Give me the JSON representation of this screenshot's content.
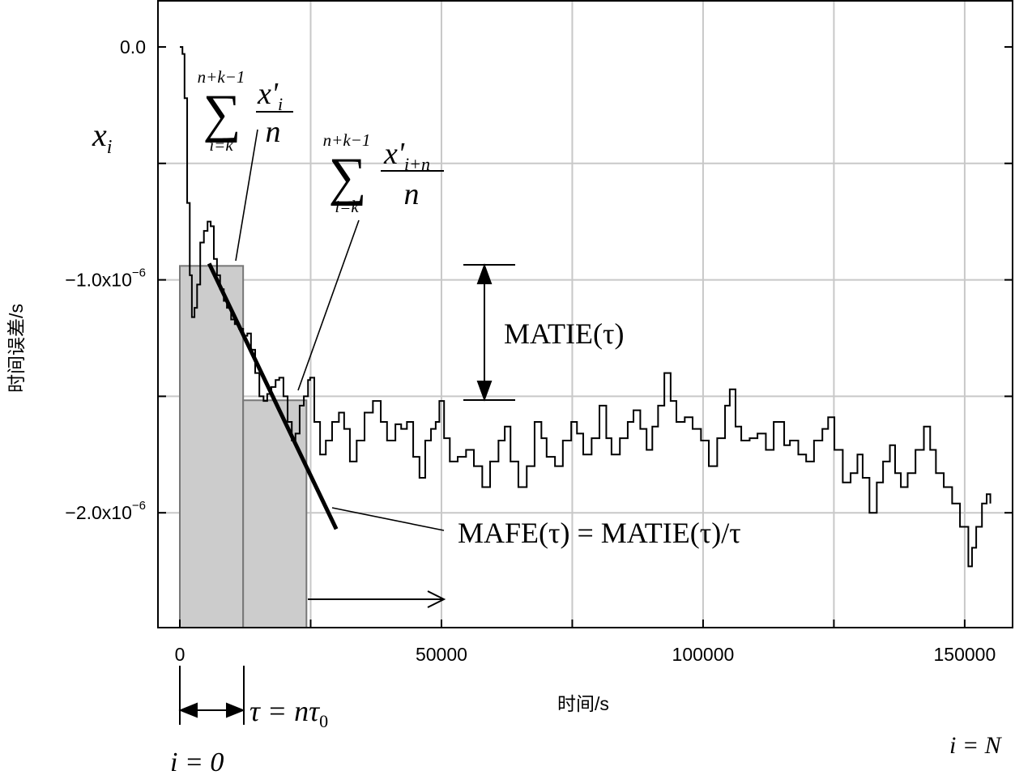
{
  "chart_data": {
    "type": "line",
    "step": true,
    "xlabel": "时间/s",
    "ylabel": "时间误差/s",
    "xlim": [
      -4180,
      159150
    ],
    "ylim": [
      -2.493e-06,
      1.98e-07
    ],
    "xticks": [
      0,
      {
        "value": 25000,
        "label": null
      },
      50000,
      {
        "value": 75000,
        "label": null
      },
      100000,
      {
        "value": 125000,
        "label": null
      },
      150000
    ],
    "yticks": [
      {
        "value": 0,
        "label": "0.0"
      },
      {
        "value": -5e-07,
        "label": null
      },
      {
        "value": -1e-06,
        "label": "−1.0x10",
        "exponent": "−6"
      },
      {
        "value": -1.5e-06,
        "label": null
      },
      {
        "value": -2e-06,
        "label": "−2.0x10",
        "exponent": "−6"
      }
    ],
    "grid": true,
    "color": "#000000",
    "x": [
      0,
      500,
      900,
      1400,
      1900,
      2300,
      2800,
      3300,
      3900,
      4600,
      5300,
      5900,
      6500,
      7100,
      7700,
      8400,
      9000,
      9800,
      10500,
      11300,
      12100,
      12900,
      13600,
      14400,
      15200,
      16000,
      16700,
      17500,
      18300,
      19000,
      19800,
      20600,
      21400,
      22100,
      22900,
      23700,
      24500,
      24900,
      25700,
      26800,
      27900,
      29100,
      30400,
      31400,
      32500,
      33800,
      35300,
      36900,
      38400,
      39600,
      41200,
      42300,
      43400,
      44600,
      45800,
      46900,
      48000,
      48900,
      49600,
      50500,
      51600,
      53100,
      54700,
      56200,
      57800,
      59300,
      60900,
      62100,
      63200,
      64700,
      66300,
      67800,
      69100,
      70100,
      71700,
      73200,
      74800,
      75900,
      77100,
      78700,
      80200,
      81500,
      82500,
      84100,
      85600,
      86700,
      88000,
      89200,
      90300,
      91400,
      92600,
      93800,
      94900,
      96500,
      98000,
      99600,
      101100,
      102700,
      104200,
      105100,
      106200,
      107300,
      108900,
      110400,
      112000,
      113500,
      114600,
      115500,
      116600,
      118200,
      119700,
      121200,
      122800,
      123900,
      125100,
      126700,
      128200,
      129500,
      130500,
      131800,
      133200,
      134400,
      135700,
      136700,
      137800,
      139100,
      140600,
      142200,
      143400,
      144500,
      146000,
      147600,
      149100,
      150700,
      151400,
      152200,
      153300,
      154200,
      154900
    ],
    "values": [
      0,
      -3e-08,
      -2.2e-07,
      -6.7e-07,
      -9.8e-07,
      -1.16e-06,
      -1.12e-06,
      -1.02e-06,
      -8.4e-07,
      -7.9e-07,
      -7.5e-07,
      -7.7e-07,
      -9.1e-07,
      -9.8e-07,
      -1.04e-06,
      -1.09e-06,
      -1.12e-06,
      -1.17e-06,
      -1.19e-06,
      -1.21e-06,
      -1.24e-06,
      -1.23e-06,
      -1.3e-06,
      -1.4e-06,
      -1.5e-06,
      -1.52e-06,
      -1.49e-06,
      -1.46e-06,
      -1.43e-06,
      -1.42e-06,
      -1.5e-06,
      -1.61e-06,
      -1.69e-06,
      -1.66e-06,
      -1.54e-06,
      -1.5e-06,
      -1.43e-06,
      -1.42e-06,
      -1.61e-06,
      -1.75e-06,
      -1.69e-06,
      -1.61e-06,
      -1.57e-06,
      -1.64e-06,
      -1.78e-06,
      -1.69e-06,
      -1.57e-06,
      -1.52e-06,
      -1.61e-06,
      -1.69e-06,
      -1.62e-06,
      -1.64e-06,
      -1.61e-06,
      -1.76e-06,
      -1.85e-06,
      -1.69e-06,
      -1.64e-06,
      -1.61e-06,
      -1.52e-06,
      -1.68e-06,
      -1.78e-06,
      -1.76e-06,
      -1.73e-06,
      -1.8e-06,
      -1.89e-06,
      -1.78e-06,
      -1.69e-06,
      -1.63e-06,
      -1.78e-06,
      -1.89e-06,
      -1.8e-06,
      -1.61e-06,
      -1.68e-06,
      -1.76e-06,
      -1.8e-06,
      -1.69e-06,
      -1.61e-06,
      -1.66e-06,
      -1.75e-06,
      -1.68e-06,
      -1.54e-06,
      -1.68e-06,
      -1.75e-06,
      -1.68e-06,
      -1.61e-06,
      -1.56e-06,
      -1.64e-06,
      -1.73e-06,
      -1.63e-06,
      -1.54e-06,
      -1.4e-06,
      -1.52e-06,
      -1.61e-06,
      -1.59e-06,
      -1.64e-06,
      -1.69e-06,
      -1.8e-06,
      -1.68e-06,
      -1.54e-06,
      -1.47e-06,
      -1.63e-06,
      -1.69e-06,
      -1.68e-06,
      -1.66e-06,
      -1.73e-06,
      -1.61e-06,
      -1.61e-06,
      -1.71e-06,
      -1.69e-06,
      -1.75e-06,
      -1.78e-06,
      -1.69e-06,
      -1.64e-06,
      -1.59e-06,
      -1.73e-06,
      -1.87e-06,
      -1.83e-06,
      -1.75e-06,
      -1.85e-06,
      -2e-06,
      -1.87e-06,
      -1.78e-06,
      -1.71e-06,
      -1.83e-06,
      -1.89e-06,
      -1.83e-06,
      -1.73e-06,
      -1.63e-06,
      -1.73e-06,
      -1.83e-06,
      -1.89e-06,
      -1.96e-06,
      -2.06e-06,
      -2.23e-06,
      -2.15e-06,
      -2.06e-06,
      -1.96e-06,
      -1.92e-06,
      -1.96e-06
    ],
    "average_boxes": [
      {
        "x": [
          0,
          12100
        ],
        "y": -9.4e-07
      },
      {
        "x": [
          12100,
          24200
        ],
        "y": -1.517e-06
      }
    ],
    "box_color": "#cccccc",
    "trend_line": {
      "x": [
        5600,
        29900
      ],
      "y": [
        -9.3e-07,
        -2.07e-06
      ]
    },
    "annotations": {
      "xi": {
        "symbol": "x",
        "sub": "i"
      },
      "sum1": {
        "upper": "n+k−1",
        "sigma": "∑",
        "lower": "i=k",
        "numerator": "x'",
        "sub": "i",
        "denominator": "n"
      },
      "sum2": {
        "upper": "n+k−1",
        "sigma": "∑",
        "lower": "i=k",
        "numerator": "x'",
        "sub": "i+n",
        "denominator": "n"
      },
      "matie": "MATIE(τ)",
      "mafe": "MAFE(τ) = MATIE(τ)/τ",
      "tau": {
        "text": "τ = nτ",
        "sub": "0"
      },
      "i0": "i = 0",
      "iN": "i = N"
    }
  }
}
